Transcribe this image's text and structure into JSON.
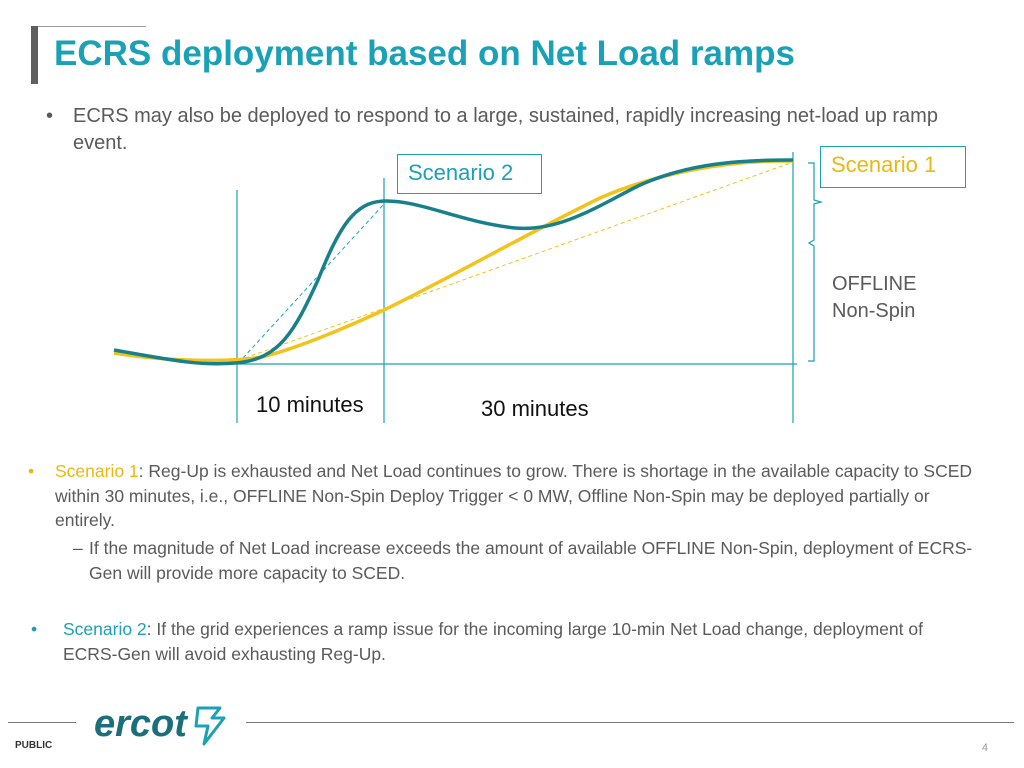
{
  "slide": {
    "title": "ECRS deployment based on Net Load ramps",
    "intro_bullet": "•",
    "intro": "ECRS may also be deployed to respond to a large, sustained, rapidly increasing net-load up ramp event."
  },
  "diagram": {
    "scenario2_label": "Scenario 2",
    "scenario1_label": "Scenario 1",
    "ten_minutes": "10 minutes",
    "thirty_minutes": "30 minutes",
    "offline_line1": "OFFLINE",
    "offline_line2": "Non-Spin",
    "colors": {
      "teal": "#17808a",
      "yellow": "#f2c31b",
      "line": "#1aa1b6"
    }
  },
  "bullets": {
    "b1_bullet": "•",
    "b1_label": "Scenario 1",
    "b1_text": ": Reg-Up is exhausted and Net Load continues to grow. There is shortage in the available capacity to SCED within 30 minutes, i.e., OFFLINE Non-Spin Deploy Trigger < 0 MW, Offline Non-Spin may be deployed partially or entirely.",
    "sub_dash": "–",
    "sub_text": "If the magnitude of Net Load increase exceeds the amount of available OFFLINE Non-Spin, deployment of ECRS-Gen will provide more capacity to SCED.",
    "b2_bullet": "•",
    "b2_label": "Scenario 2",
    "b2_text": ": If the grid experiences a ramp issue for the incoming large 10-min Net Load change, deployment of ECRS-Gen will avoid exhausting Reg-Up."
  },
  "footer": {
    "classification": "PUBLIC",
    "page_number": "4",
    "logo_text": "ercot"
  }
}
